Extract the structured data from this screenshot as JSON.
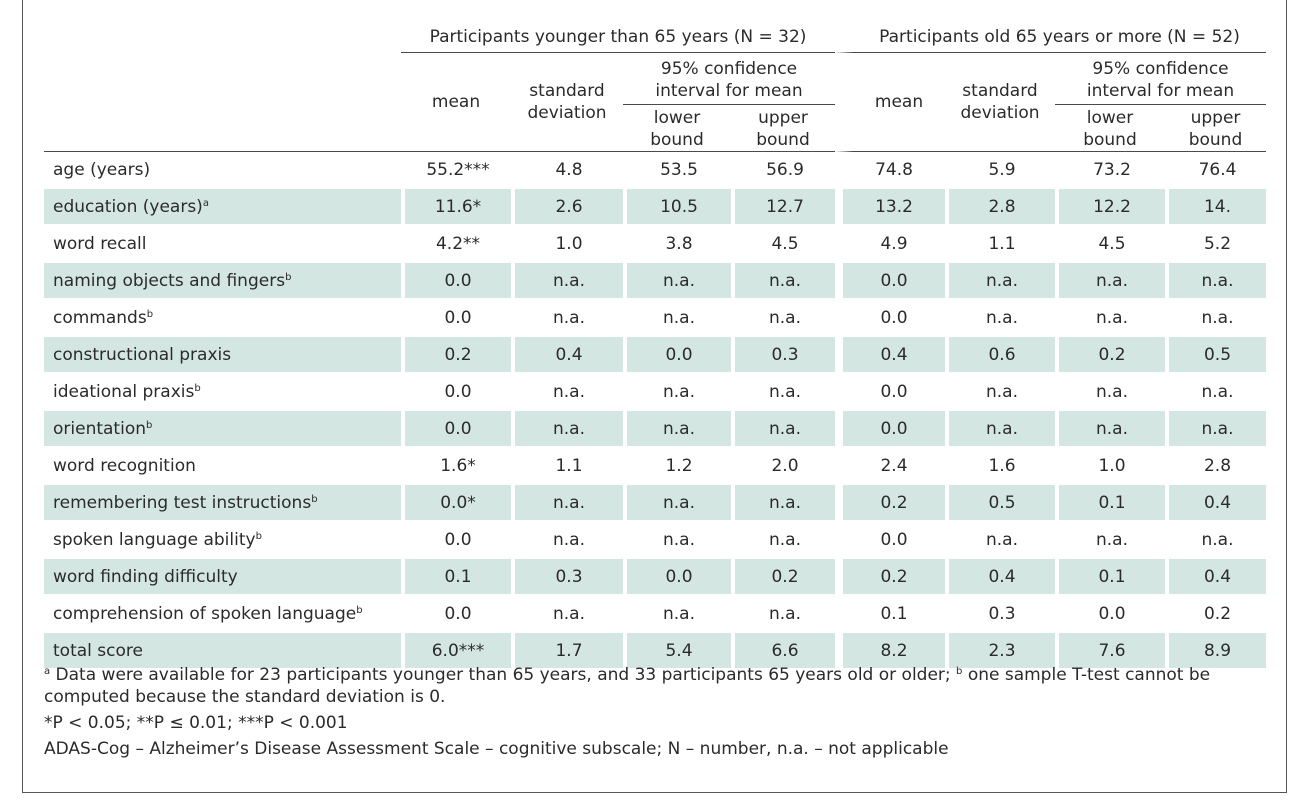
{
  "groups": [
    "Participants younger than 65 years (N = 32)",
    "Participants old 65 years or more (N = 52)"
  ],
  "headers": {
    "mean": "mean",
    "sd_line1": "standard",
    "sd_line2": "deviation",
    "ci_line1": "95% confidence",
    "ci_line2": "interval for mean",
    "lower_line1": "lower",
    "lower_line2": "bound",
    "upper_line1": "upper",
    "upper_line2": "bound"
  },
  "rows": [
    {
      "label": "age (years)",
      "sup": "",
      "values": [
        "55.2***",
        "4.8",
        "53.5",
        "56.9",
        "74.8",
        "5.9",
        "73.2",
        "76.4"
      ]
    },
    {
      "label": "education (years)",
      "sup": "a",
      "values": [
        "11.6*",
        "2.6",
        "10.5",
        "12.7",
        "13.2",
        "2.8",
        "12.2",
        "14."
      ]
    },
    {
      "label": "word recall",
      "sup": "",
      "values": [
        "4.2**",
        "1.0",
        "3.8",
        "4.5",
        "4.9",
        "1.1",
        "4.5",
        "5.2"
      ]
    },
    {
      "label": "naming objects and fingers",
      "sup": "b",
      "values": [
        "0.0",
        "n.a.",
        "n.a.",
        "n.a.",
        "0.0",
        "n.a.",
        "n.a.",
        "n.a."
      ]
    },
    {
      "label": "commands",
      "sup": "b",
      "values": [
        "0.0",
        "n.a.",
        "n.a.",
        "n.a.",
        "0.0",
        "n.a.",
        "n.a.",
        "n.a."
      ]
    },
    {
      "label": "constructional praxis",
      "sup": "",
      "values": [
        "0.2",
        "0.4",
        "0.0",
        "0.3",
        "0.4",
        "0.6",
        "0.2",
        "0.5"
      ]
    },
    {
      "label": "ideational praxis",
      "sup": "b",
      "values": [
        "0.0",
        "n.a.",
        "n.a.",
        "n.a.",
        "0.0",
        "n.a.",
        "n.a.",
        "n.a."
      ]
    },
    {
      "label": "orientation",
      "sup": "b",
      "values": [
        "0.0",
        "n.a.",
        "n.a.",
        "n.a.",
        "0.0",
        "n.a.",
        "n.a.",
        "n.a."
      ]
    },
    {
      "label": "word recognition",
      "sup": "",
      "values": [
        "1.6*",
        "1.1",
        "1.2",
        "2.0",
        "2.4",
        "1.6",
        "1.0",
        "2.8"
      ]
    },
    {
      "label": "remembering test instructions",
      "sup": "b",
      "values": [
        "0.0*",
        "n.a.",
        "n.a.",
        "n.a.",
        "0.2",
        "0.5",
        "0.1",
        "0.4"
      ]
    },
    {
      "label": "spoken language ability",
      "sup": "b",
      "values": [
        "0.0",
        "n.a.",
        "n.a.",
        "n.a.",
        "0.0",
        "n.a.",
        "n.a.",
        "n.a."
      ]
    },
    {
      "label": "word finding difficulty",
      "sup": "",
      "values": [
        "0.1",
        "0.3",
        "0.0",
        "0.2",
        "0.2",
        "0.4",
        "0.1",
        "0.4"
      ]
    },
    {
      "label": "comprehension of spoken language",
      "sup": "b",
      "values": [
        "0.0",
        "n.a.",
        "n.a.",
        "n.a.",
        "0.1",
        "0.3",
        "0.0",
        "0.2"
      ]
    },
    {
      "label": "total score",
      "sup": "",
      "values": [
        "6.0***",
        "1.7",
        "5.4",
        "6.6",
        "8.2",
        "2.3",
        "7.6",
        "8.9"
      ]
    }
  ],
  "footnotes": {
    "a_mark": "a",
    "a_text": "Data were available for 23 participants younger than 65 years, and 33 participants 65 years old or older;",
    "b_mark": "b",
    "b_text": "one sample T-test cannot be computed because the standard deviation is 0.",
    "significance": "*P < 0.05; **P ≤ 0.01; ***P < 0.001",
    "abbreviations": "ADAS-Cog – Alzheimer’s Disease Assessment Scale – cognitive subscale; N – number, n.a. – not applicable"
  },
  "colors": {
    "stripe": "#d4e6e2",
    "text": "#2b2b2b",
    "rule": "#4a4a4a"
  }
}
